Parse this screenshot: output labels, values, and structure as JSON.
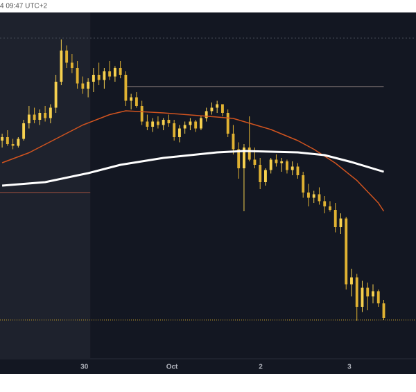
{
  "chart_data": {
    "type": "candlestick",
    "timestamp": "4 09:47 UTC+2",
    "ylim": [
      0,
      100
    ],
    "xlim": [
      -0.4,
      77
    ],
    "xticks": [
      {
        "value": 15.3,
        "label": "30"
      },
      {
        "value": 31.6,
        "label": "Oct"
      },
      {
        "value": 48.1,
        "label": "2"
      },
      {
        "value": 64.6,
        "label": "3"
      }
    ],
    "highlight_range": [
      -0.4,
      16.4
    ],
    "up_color": "#f7d14f",
    "down_color": "#e0b232",
    "open": [
      63,
      64,
      62,
      61.5,
      63.5,
      68,
      70.5,
      69,
      71,
      69.5,
      72.5,
      80,
      89,
      85.5,
      84,
      79.5,
      78,
      80,
      82,
      80.5,
      83,
      81.5,
      84,
      82,
      74.5,
      75.5,
      73,
      68.5,
      67,
      68.5,
      67.5,
      69,
      68,
      64,
      66.5,
      67.5,
      68.5,
      66.5,
      69.5,
      71.5,
      72.5,
      73.5,
      71,
      65,
      60.5,
      55,
      61,
      57.5,
      56,
      51,
      54.5,
      57.5,
      56.5,
      57,
      54.5,
      55.5,
      53,
      48,
      46.5,
      47.5,
      45.5,
      44,
      43,
      38,
      40.5,
      21.5,
      23.5,
      15,
      20.5,
      18,
      19.5,
      16
    ],
    "high": [
      65,
      66,
      63.5,
      64,
      69,
      73,
      72.5,
      72,
      73,
      73.5,
      82,
      92.2,
      90.5,
      88,
      86,
      81.5,
      81,
      84,
      85.5,
      84,
      86,
      84.5,
      86,
      83,
      76.5,
      77,
      74.5,
      70.5,
      69.5,
      70,
      69.5,
      70.5,
      69,
      67.5,
      68.5,
      69.5,
      69,
      70,
      72.5,
      74,
      74.5,
      73.5,
      72,
      67.5,
      62.5,
      62,
      70,
      61,
      58,
      55,
      58,
      59,
      58,
      57.5,
      57,
      56.5,
      54,
      50.5,
      48.5,
      49.5,
      47,
      45.5,
      45,
      42,
      41,
      26,
      24.5,
      22.5,
      22,
      21.5,
      20,
      17
    ],
    "low": [
      61,
      61.5,
      60.5,
      61,
      63,
      66.5,
      68,
      67.5,
      68.5,
      68,
      71,
      79,
      84,
      82.5,
      78,
      76.5,
      75.5,
      77,
      79,
      78,
      80.5,
      80,
      81,
      73,
      72,
      72.5,
      67.5,
      66,
      65.5,
      66.5,
      66,
      67,
      63,
      62.5,
      65,
      66,
      65.5,
      66,
      68.5,
      70.5,
      71,
      70,
      64,
      59,
      52,
      42.6,
      57,
      55,
      49,
      50,
      53.5,
      55.5,
      54,
      53.5,
      53,
      52,
      46.5,
      44,
      45,
      44.5,
      42,
      42.5,
      36.5,
      36,
      20,
      18,
      11,
      13.5,
      14,
      16,
      15,
      11.2
    ],
    "close": [
      64,
      62,
      61.5,
      63.5,
      68,
      70.5,
      69,
      71,
      69.5,
      72.5,
      80,
      89,
      85.5,
      84,
      79.5,
      78,
      80,
      82,
      80.5,
      83,
      81.5,
      84,
      82,
      74.5,
      75.5,
      73,
      68.5,
      67,
      68.5,
      67.5,
      69,
      68,
      64,
      66.5,
      67.5,
      68.5,
      66.5,
      69.5,
      71.5,
      72.5,
      73.5,
      71,
      65,
      60.5,
      55,
      61,
      57.5,
      56,
      51,
      54.5,
      57.5,
      56.5,
      57,
      54.5,
      55.5,
      53,
      48,
      46.5,
      47.5,
      45.5,
      44,
      43,
      38,
      40.5,
      21.5,
      23.5,
      15,
      20.5,
      18,
      19.5,
      16,
      11.8
    ],
    "series": [
      {
        "color": "#d2541f",
        "x": [
          0,
          5,
          10,
          15,
          20,
          23,
          30,
          40,
          43,
          50,
          55,
          58,
          62,
          66,
          70,
          71
        ],
        "values": [
          56.6,
          59.5,
          63.5,
          67.5,
          70.5,
          71.6,
          71,
          69.8,
          69.4,
          66.2,
          63,
          60.5,
          56.5,
          51.5,
          45,
          42.6
        ]
      },
      {
        "color": "#ffffff",
        "x": [
          0,
          8,
          16,
          22,
          30,
          40,
          45,
          55,
          60,
          65,
          71
        ],
        "values": [
          50,
          51,
          53.6,
          56,
          58,
          59.6,
          60,
          59.6,
          58.8,
          56.8,
          54
        ]
      }
    ],
    "hlines": [
      {
        "value": 92.6,
        "color": "#3d424e",
        "dash": "2 3",
        "xrange": [
          -0.4,
          77
        ]
      },
      {
        "value": 78.6,
        "color": "#7d7272",
        "dash": "",
        "xrange": [
          22.8,
          71
        ]
      },
      {
        "value": 48,
        "color": "#8a4a3c",
        "dash": "",
        "xrange": [
          -0.4,
          16.4
        ]
      },
      {
        "value": 11.2,
        "color": "#a8892a",
        "dash": "1 2",
        "xrange": [
          -0.4,
          77
        ]
      }
    ]
  }
}
